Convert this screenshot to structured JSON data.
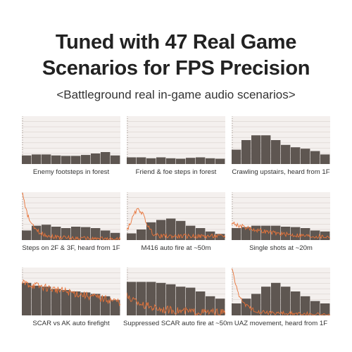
{
  "header": {
    "title_line1": "Tuned with 47 Real Game",
    "title_line2": "Scenarios for FPS Precision",
    "subtitle": "<Battleground real in-game audio scenarios>"
  },
  "colors": {
    "bar": "#5e5651",
    "trace": "#e8743a",
    "bg": "#f4f0ee",
    "grid": "#d9d2ce"
  },
  "chart_data": [
    {
      "type": "bar",
      "caption": "Enemy footsteps in forest",
      "values": [
        0.18,
        0.2,
        0.2,
        0.18,
        0.17,
        0.17,
        0.19,
        0.22,
        0.25,
        0.18
      ],
      "trace": "none"
    },
    {
      "type": "bar",
      "caption": "Friend & foe steps in forest",
      "values": [
        0.14,
        0.14,
        0.12,
        0.14,
        0.12,
        0.11,
        0.13,
        0.14,
        0.12,
        0.11
      ],
      "trace": "none"
    },
    {
      "type": "bar",
      "caption": "Crawling upstairs, heard from 1F",
      "values": [
        0.3,
        0.5,
        0.6,
        0.6,
        0.5,
        0.4,
        0.35,
        0.32,
        0.27,
        0.2
      ],
      "trace": "none"
    },
    {
      "type": "bar",
      "caption": "Steps on 2F & 3F, heard from 1F",
      "values": [
        0.2,
        0.3,
        0.32,
        0.28,
        0.25,
        0.28,
        0.27,
        0.25,
        0.2,
        0.15
      ],
      "trace": "spike"
    },
    {
      "type": "bar",
      "caption": "M416 auto fire at ~50m",
      "values": [
        0.14,
        0.22,
        0.37,
        0.42,
        0.45,
        0.4,
        0.3,
        0.25,
        0.18,
        0.13
      ],
      "trace": "bump"
    },
    {
      "type": "bar",
      "caption": "Single shots at ~20m",
      "values": [
        0.25,
        0.27,
        0.3,
        0.3,
        0.3,
        0.28,
        0.27,
        0.25,
        0.2,
        0.18
      ],
      "trace": "decay"
    },
    {
      "type": "bar",
      "caption": "SCAR vs AK auto firefight",
      "values": [
        0.68,
        0.62,
        0.6,
        0.55,
        0.53,
        0.5,
        0.48,
        0.45,
        0.4,
        0.32
      ],
      "trace": "noisy-high"
    },
    {
      "type": "bar",
      "caption": "Suppressed SCAR auto fire at ~50m",
      "values": [
        0.7,
        0.7,
        0.7,
        0.68,
        0.65,
        0.6,
        0.58,
        0.5,
        0.4,
        0.35
      ],
      "trace": "noisy-mid"
    },
    {
      "type": "bar",
      "caption": "UAZ movement, heard from 1F",
      "values": [
        0.25,
        0.35,
        0.45,
        0.6,
        0.68,
        0.6,
        0.5,
        0.4,
        0.3,
        0.25
      ],
      "trace": "spike"
    }
  ]
}
